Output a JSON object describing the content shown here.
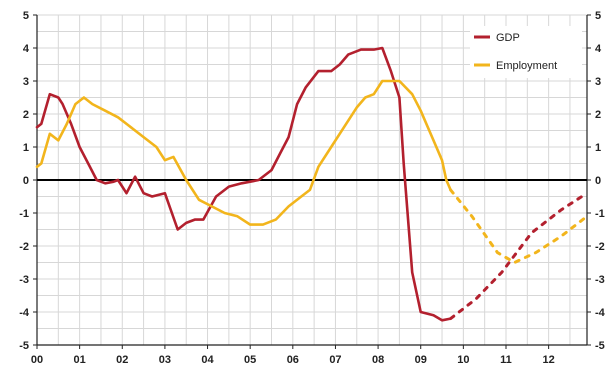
{
  "chart_data": {
    "type": "line",
    "title": "",
    "xlabel": "",
    "ylabel": "",
    "ylim": [
      -5,
      5
    ],
    "xlim": [
      0,
      12.9
    ],
    "grid": true,
    "legend_position": "top-right",
    "x_tick_labels": [
      "00",
      "01",
      "02",
      "03",
      "04",
      "05",
      "06",
      "07",
      "08",
      "09",
      "10",
      "11",
      "12"
    ],
    "y_tick_labels": [
      "5",
      "4",
      "3",
      "2",
      "1",
      "0",
      "-1",
      "-2",
      "-3",
      "-4",
      "-5"
    ],
    "y_ticks": [
      5,
      4,
      3,
      2,
      1,
      0,
      -1,
      -2,
      -3,
      -4,
      -5
    ],
    "series": [
      {
        "name": "GDP",
        "color": "#b3202e",
        "values": [
          [
            0,
            1.6
          ],
          [
            0.1,
            1.7
          ],
          [
            0.3,
            2.6
          ],
          [
            0.5,
            2.5
          ],
          [
            0.6,
            2.3
          ],
          [
            0.8,
            1.7
          ],
          [
            1.0,
            1.0
          ],
          [
            1.2,
            0.5
          ],
          [
            1.4,
            0.0
          ],
          [
            1.6,
            -0.1
          ],
          [
            1.8,
            -0.05
          ],
          [
            1.9,
            0.0
          ],
          [
            2.1,
            -0.4
          ],
          [
            2.3,
            0.1
          ],
          [
            2.5,
            -0.4
          ],
          [
            2.7,
            -0.5
          ],
          [
            3.0,
            -0.4
          ],
          [
            3.3,
            -1.5
          ],
          [
            3.5,
            -1.3
          ],
          [
            3.7,
            -1.2
          ],
          [
            3.9,
            -1.2
          ],
          [
            4.2,
            -0.5
          ],
          [
            4.5,
            -0.2
          ],
          [
            4.8,
            -0.1
          ],
          [
            5.0,
            -0.05
          ],
          [
            5.2,
            0.0
          ],
          [
            5.5,
            0.3
          ],
          [
            5.7,
            0.8
          ],
          [
            5.9,
            1.3
          ],
          [
            6.1,
            2.3
          ],
          [
            6.3,
            2.8
          ],
          [
            6.6,
            3.3
          ],
          [
            6.9,
            3.3
          ],
          [
            7.1,
            3.5
          ],
          [
            7.3,
            3.8
          ],
          [
            7.6,
            3.95
          ],
          [
            7.9,
            3.95
          ],
          [
            8.1,
            4.0
          ],
          [
            8.3,
            3.3
          ],
          [
            8.5,
            2.5
          ],
          [
            8.6,
            0.5
          ],
          [
            8.8,
            -2.8
          ],
          [
            9.0,
            -4.0
          ],
          [
            9.3,
            -4.1
          ],
          [
            9.5,
            -4.25
          ],
          [
            9.7,
            -4.2
          ]
        ],
        "forecast": [
          [
            9.7,
            -4.2
          ],
          [
            10.3,
            -3.6
          ],
          [
            10.9,
            -2.8
          ],
          [
            11.6,
            -1.6
          ],
          [
            12.3,
            -0.9
          ],
          [
            12.9,
            -0.4
          ]
        ]
      },
      {
        "name": "Employment",
        "color": "#f2b51c",
        "values": [
          [
            0,
            0.4
          ],
          [
            0.1,
            0.5
          ],
          [
            0.3,
            1.4
          ],
          [
            0.5,
            1.2
          ],
          [
            0.7,
            1.7
          ],
          [
            0.9,
            2.3
          ],
          [
            1.1,
            2.5
          ],
          [
            1.3,
            2.3
          ],
          [
            1.6,
            2.1
          ],
          [
            1.9,
            1.9
          ],
          [
            2.2,
            1.6
          ],
          [
            2.5,
            1.3
          ],
          [
            2.8,
            1.0
          ],
          [
            3.0,
            0.6
          ],
          [
            3.2,
            0.7
          ],
          [
            3.5,
            0.0
          ],
          [
            3.8,
            -0.6
          ],
          [
            4.1,
            -0.8
          ],
          [
            4.4,
            -1.0
          ],
          [
            4.7,
            -1.1
          ],
          [
            5.0,
            -1.35
          ],
          [
            5.3,
            -1.35
          ],
          [
            5.6,
            -1.2
          ],
          [
            5.9,
            -0.8
          ],
          [
            6.2,
            -0.5
          ],
          [
            6.4,
            -0.3
          ],
          [
            6.6,
            0.4
          ],
          [
            6.9,
            1.0
          ],
          [
            7.2,
            1.6
          ],
          [
            7.5,
            2.2
          ],
          [
            7.7,
            2.5
          ],
          [
            7.9,
            2.6
          ],
          [
            8.1,
            3.0
          ],
          [
            8.3,
            3.0
          ],
          [
            8.5,
            3.0
          ],
          [
            8.8,
            2.6
          ],
          [
            9.0,
            2.1
          ],
          [
            9.3,
            1.2
          ],
          [
            9.5,
            0.6
          ],
          [
            9.6,
            0.0
          ],
          [
            9.7,
            -0.3
          ]
        ],
        "forecast": [
          [
            9.7,
            -0.3
          ],
          [
            10.2,
            -1.1
          ],
          [
            10.8,
            -2.2
          ],
          [
            11.2,
            -2.5
          ],
          [
            11.7,
            -2.2
          ],
          [
            12.3,
            -1.7
          ],
          [
            12.9,
            -1.1
          ]
        ]
      }
    ]
  }
}
